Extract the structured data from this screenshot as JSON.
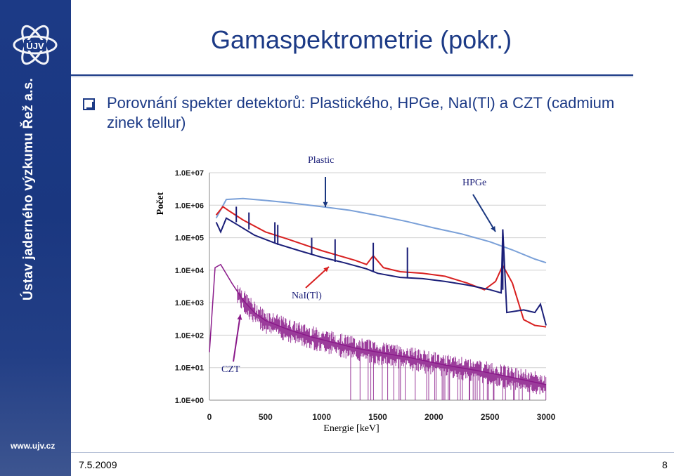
{
  "slide": {
    "title": "Gamaspektrometrie (pokr.)",
    "bullet_text": "Porovnání spekter detektorů: Plastického, HPGe, NaI(Tl) a CZT (cadmium zinek tellur)",
    "date": "7.5.2009",
    "page_number": "8"
  },
  "sidebar": {
    "logo_text": "ÚJV",
    "vertical_text": "Ústav jaderného výzkumu Řež a.s.",
    "url": "www.ujv.cz"
  },
  "colors": {
    "brand_blue": "#1c3a86",
    "plastic": "#7aa0d8",
    "hpge": "#1a1e78",
    "nai": "#d82020",
    "czt": "#8a1a8a"
  },
  "chart_data": {
    "type": "line",
    "title": "",
    "xlabel": "Energie [keV]",
    "ylabel": "Počet",
    "x_ticks": [
      "0",
      "500",
      "1000",
      "1500",
      "2000",
      "2500",
      "3000"
    ],
    "y_ticks": [
      "1.0E+00",
      "1.0E+01",
      "1.0E+02",
      "1.0E+03",
      "1.0E+04",
      "1.0E+05",
      "1.0E+06",
      "1.0E+07"
    ],
    "xlim": [
      0,
      3000
    ],
    "ylim": [
      1,
      10000000
    ],
    "log_y": true,
    "annotations": [
      "Plastic",
      "HPGe",
      "NaI(Tl)",
      "CZT"
    ],
    "series": [
      {
        "name": "Plastic",
        "x": [
          60,
          150,
          300,
          500,
          700,
          1000,
          1250,
          1500,
          1750,
          2000,
          2250,
          2500,
          2700,
          2900,
          3000
        ],
        "y": [
          400000,
          1500000,
          1600000,
          1400000,
          1200000,
          900000,
          700000,
          480000,
          320000,
          200000,
          130000,
          75000,
          42000,
          22000,
          17000
        ]
      },
      {
        "name": "HPGe",
        "x": [
          60,
          100,
          150,
          250,
          400,
          600,
          800,
          1000,
          1200,
          1400,
          1500,
          1700,
          1900,
          2100,
          2300,
          2500,
          2600,
          2614,
          2650,
          2800,
          2900,
          2950,
          3000
        ],
        "y": [
          300000,
          150000,
          400000,
          250000,
          120000,
          65000,
          40000,
          25000,
          17000,
          11000,
          8000,
          6000,
          5500,
          4500,
          3500,
          2500,
          2000,
          180000,
          500,
          600,
          500,
          900,
          200
        ]
      },
      {
        "name": "NaI(Tl)",
        "x": [
          60,
          120,
          180,
          300,
          500,
          700,
          1000,
          1300,
          1400,
          1460,
          1550,
          1700,
          1900,
          2100,
          2300,
          2450,
          2550,
          2614,
          2700,
          2800,
          2900,
          3000
        ],
        "y": [
          500000,
          900000,
          650000,
          350000,
          150000,
          90000,
          40000,
          20000,
          15000,
          28000,
          12000,
          9000,
          8000,
          6500,
          4000,
          2500,
          4500,
          14000,
          4000,
          300,
          200,
          180
        ]
      },
      {
        "name": "CZT",
        "x": [
          0,
          50,
          100,
          200,
          300,
          400,
          500,
          700,
          900,
          1100,
          1300,
          1500,
          1800,
          2100,
          2400,
          2700,
          3000
        ],
        "y": [
          30,
          12000,
          15000,
          4000,
          1200,
          500,
          280,
          150,
          90,
          60,
          40,
          30,
          20,
          12,
          8,
          5,
          3
        ]
      }
    ]
  }
}
